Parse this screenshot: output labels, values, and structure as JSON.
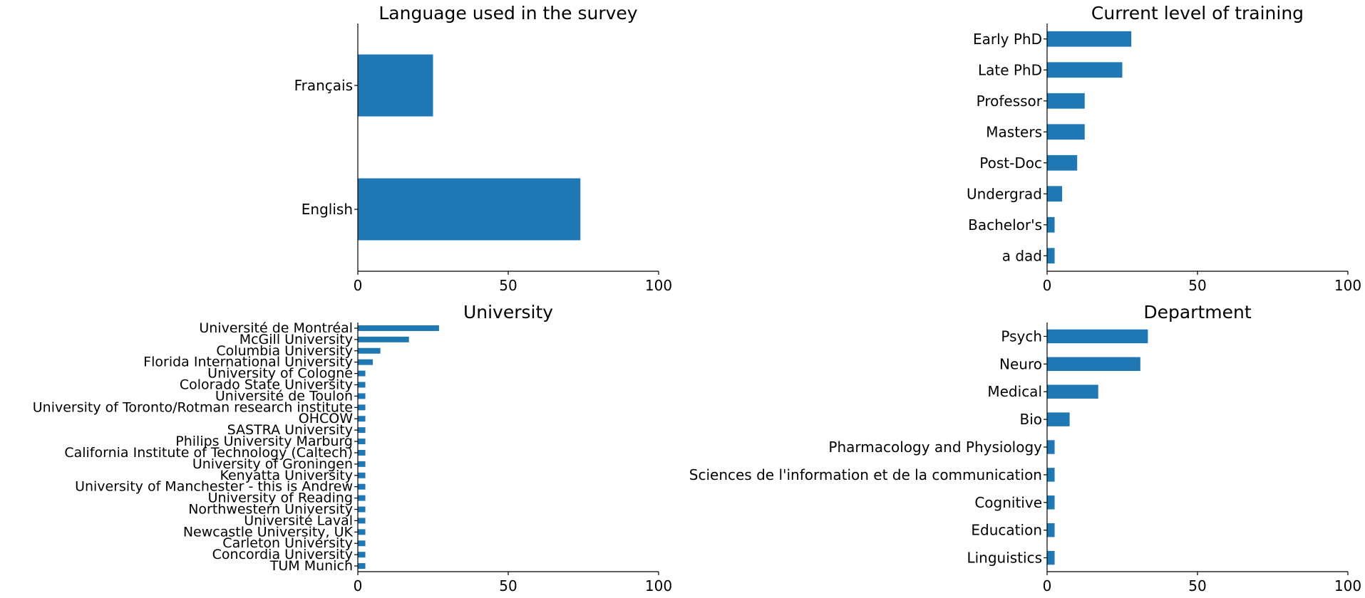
{
  "bar_color": "#1f77b4",
  "chart_data": [
    {
      "type": "bar",
      "orientation": "horizontal",
      "title": "Language used in the survey",
      "categories": [
        "English",
        "Français"
      ],
      "values": [
        74,
        25
      ],
      "xlim": [
        0,
        100
      ],
      "xticks": [
        0,
        50,
        100
      ],
      "grid": false,
      "legend": false
    },
    {
      "type": "bar",
      "orientation": "horizontal",
      "title": "Current level of training",
      "categories": [
        "a dad",
        "Bachelor's",
        "Undergrad",
        "Post-Doc",
        "Masters",
        "Professor",
        "Late PhD",
        "Early PhD"
      ],
      "values": [
        2.5,
        2.5,
        5,
        10,
        12.5,
        12.5,
        25,
        28
      ],
      "xlim": [
        0,
        100
      ],
      "xticks": [
        0,
        50,
        100
      ],
      "grid": false,
      "legend": false
    },
    {
      "type": "bar",
      "orientation": "horizontal",
      "title": "University",
      "categories": [
        "TUM Munich",
        "Concordia University",
        "Carleton University",
        "Newcastle  University, UK",
        "Université Laval",
        "Northwestern University",
        "University of Reading",
        "University of Manchester - this is Andrew",
        "Kenyatta University",
        "University of Groningen",
        "California Institute of Technology (Caltech)",
        "Philips University Marburg",
        "SASTRA University",
        "OHCOW",
        "University of Toronto/Rotman research institute ",
        "Université de Toulon",
        "Colorado State University",
        "University of Cologne ",
        "Florida International University",
        "Columbia University",
        "McGill University",
        "Université de Montréal"
      ],
      "values": [
        2.5,
        2.5,
        2.5,
        2.5,
        2.5,
        2.5,
        2.5,
        2.5,
        2.5,
        2.5,
        2.5,
        2.5,
        2.5,
        2.5,
        2.5,
        2.5,
        2.5,
        2.5,
        5,
        7.5,
        17,
        27
      ],
      "xlim": [
        0,
        100
      ],
      "xticks": [
        0,
        50,
        100
      ],
      "grid": false,
      "legend": false
    },
    {
      "type": "bar",
      "orientation": "horizontal",
      "title": "Department",
      "categories": [
        "Linguistics",
        "Education",
        "Cognitive",
        "Sciences de l'information et de la communication",
        "Pharmacology and Physiology",
        "Bio",
        "Medical",
        "Neuro",
        "Psych"
      ],
      "values": [
        2.5,
        2.5,
        2.5,
        2.5,
        2.5,
        7.5,
        17,
        31,
        33.5
      ],
      "xlim": [
        0,
        100
      ],
      "xticks": [
        0,
        50,
        100
      ],
      "grid": false,
      "legend": false
    }
  ]
}
